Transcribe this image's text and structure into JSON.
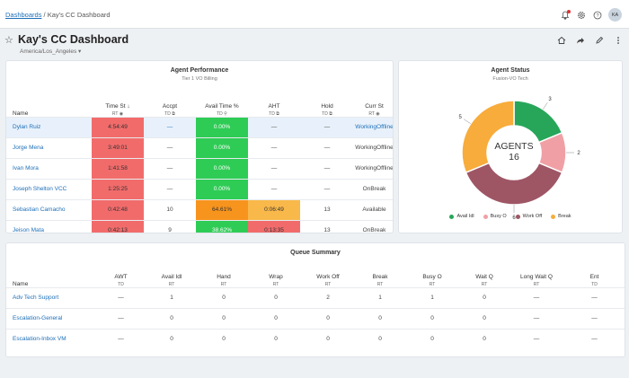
{
  "breadcrumb": {
    "root": "Dashboards",
    "separator": "/",
    "current": "Kay's CC Dashboard"
  },
  "user": {
    "initials": "KA"
  },
  "header": {
    "title": "Kay's CC Dashboard",
    "timezone": "America/Los_Angeles"
  },
  "agent_performance": {
    "title": "Agent Performance",
    "subtitle": "Tier 1 VO Billing",
    "columns": [
      {
        "name": "Name",
        "sub": ""
      },
      {
        "name": "Time St",
        "sub": "RT"
      },
      {
        "name": "Accpt",
        "sub": "TD"
      },
      {
        "name": "Avail Time %",
        "sub": "TD"
      },
      {
        "name": "AHT",
        "sub": "TD"
      },
      {
        "name": "Hold",
        "sub": "TD"
      },
      {
        "name": "Curr St",
        "sub": "RT"
      }
    ],
    "rows": [
      {
        "name": "Dylan Ruiz",
        "time": "4:54:49",
        "accpt": "—",
        "avail": "0.00%",
        "aht": "—",
        "hold": "—",
        "curr": "WorkingOffline"
      },
      {
        "name": "Jorge Mena",
        "time": "3:49:01",
        "accpt": "—",
        "avail": "0.00%",
        "aht": "—",
        "hold": "—",
        "curr": "WorkingOffline"
      },
      {
        "name": "Ivan Mora",
        "time": "1:41:58",
        "accpt": "—",
        "avail": "0.00%",
        "aht": "—",
        "hold": "—",
        "curr": "WorkingOffline"
      },
      {
        "name": "Joseph Shelton VCC",
        "time": "1:25:25",
        "accpt": "—",
        "avail": "0.00%",
        "aht": "—",
        "hold": "—",
        "curr": "OnBreak"
      },
      {
        "name": "Sebastian Camacho",
        "time": "0:42:48",
        "accpt": "10",
        "avail": "64.61%",
        "aht": "0:06:49",
        "hold": "13",
        "curr": "Available"
      },
      {
        "name": "Jeison Mata",
        "time": "0:42:13",
        "accpt": "9",
        "avail": "38.62%",
        "aht": "0:13:35",
        "hold": "13",
        "curr": "OnBreak"
      }
    ]
  },
  "agent_status": {
    "title": "Agent Status",
    "subtitle": "Fusion-VO Tech",
    "center_label": "AGENTS",
    "center_value": "16"
  },
  "chart_data": {
    "type": "pie",
    "title": "Agent Status",
    "subtitle": "Fusion-VO Tech",
    "donut": true,
    "categories": [
      "Avail Idl",
      "Busy O",
      "Work Off",
      "Break"
    ],
    "values": [
      3,
      2,
      6,
      5
    ],
    "colors": [
      "#27a65a",
      "#f0a0a5",
      "#9e5665",
      "#f7ac3b"
    ],
    "legend_position": "bottom"
  },
  "queue_summary": {
    "title": "Queue Summary",
    "columns": [
      {
        "name": "Name",
        "sub": ""
      },
      {
        "name": "AWT",
        "sub": "TD"
      },
      {
        "name": "Avail Idl",
        "sub": "RT"
      },
      {
        "name": "Hand",
        "sub": "RT"
      },
      {
        "name": "Wrap",
        "sub": "RT"
      },
      {
        "name": "Work Off",
        "sub": "RT"
      },
      {
        "name": "Break",
        "sub": "RT"
      },
      {
        "name": "Busy O",
        "sub": "RT"
      },
      {
        "name": "Wait Q",
        "sub": "RT"
      },
      {
        "name": "Long Wait Q",
        "sub": "RT"
      },
      {
        "name": "Ent",
        "sub": "TD"
      }
    ],
    "rows": [
      {
        "name": "Adv Tech Support",
        "cells": [
          "—",
          "1",
          "0",
          "0",
          "2",
          "1",
          "1",
          "0",
          "—",
          "—"
        ]
      },
      {
        "name": "Escalation-General",
        "cells": [
          "—",
          "0",
          "0",
          "0",
          "0",
          "0",
          "0",
          "0",
          "—",
          "—"
        ]
      },
      {
        "name": "Escalation-Inbox VM",
        "cells": [
          "—",
          "0",
          "0",
          "0",
          "0",
          "0",
          "0",
          "0",
          "—",
          "—"
        ]
      }
    ]
  }
}
